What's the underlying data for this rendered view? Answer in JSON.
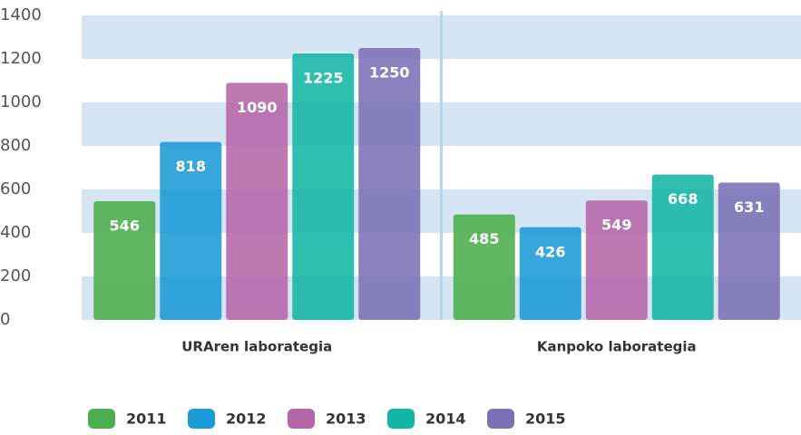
{
  "chart_data": {
    "type": "bar",
    "categories": [
      "URAren laborategia",
      "Kanpoko laborategia"
    ],
    "series": [
      {
        "name": "2011",
        "color": "#4cae4c",
        "values": [
          546,
          485
        ]
      },
      {
        "name": "2012",
        "color": "#1a9ad6",
        "values": [
          818,
          426
        ]
      },
      {
        "name": "2013",
        "color": "#b565a7",
        "values": [
          1090,
          549
        ]
      },
      {
        "name": "2014",
        "color": "#13b5a5",
        "values": [
          1225,
          668
        ]
      },
      {
        "name": "2015",
        "color": "#7b6fb5",
        "values": [
          1250,
          631
        ]
      }
    ],
    "ylim": [
      0,
      1400
    ],
    "yticks": [
      0,
      200,
      400,
      600,
      800,
      1000,
      1200,
      1400
    ],
    "grid": true,
    "legend": "bottom"
  }
}
